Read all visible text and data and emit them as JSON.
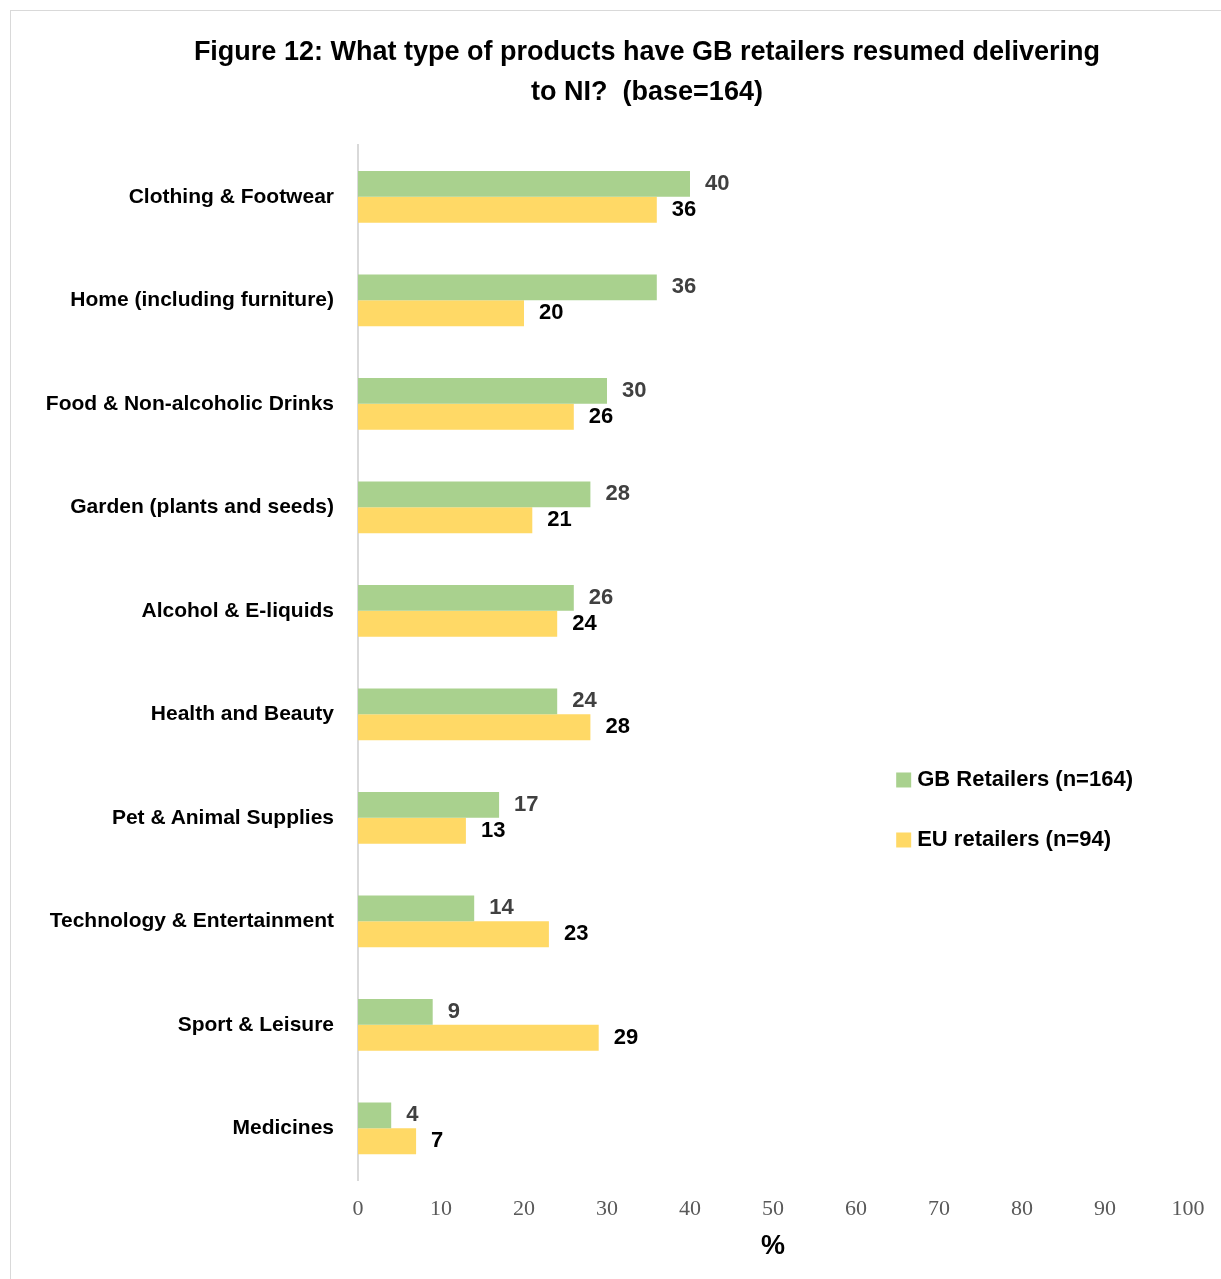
{
  "chart_data": {
    "type": "bar",
    "orientation": "horizontal",
    "title": "Figure 12: What type of products have GB retailers resumed delivering to NI?  (base=164)",
    "xlabel": "%",
    "categories": [
      "Clothing & Footwear",
      "Home (including furniture)",
      "Food & Non-alcoholic Drinks",
      "Garden (plants and seeds)",
      "Alcohol & E-liquids",
      "Health and Beauty",
      "Pet & Animal Supplies",
      "Technology & Entertainment",
      "Sport & Leisure",
      "Medicines"
    ],
    "series": [
      {
        "name": "GB Retailers (n=164)",
        "color": "#a9d18e",
        "values": [
          40,
          36,
          30,
          28,
          26,
          24,
          17,
          14,
          9,
          4
        ]
      },
      {
        "name": "EU retailers (n=94)",
        "color": "#ffd966",
        "values": [
          36,
          20,
          26,
          21,
          24,
          28,
          13,
          23,
          29,
          7
        ]
      }
    ],
    "xlim": [
      0,
      100
    ],
    "xticks": [
      0,
      10,
      20,
      30,
      40,
      50,
      60,
      70,
      80,
      90,
      100
    ],
    "data_labels": true,
    "legend": "right"
  }
}
